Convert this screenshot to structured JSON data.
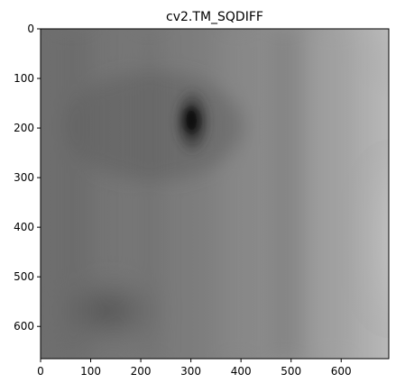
{
  "chart_data": {
    "type": "heatmap",
    "title": "cv2.TM_SQDIFF",
    "colormap": "gray",
    "xlim": [
      0,
      695
    ],
    "ylim": [
      665,
      0
    ],
    "x_ticks": [
      0,
      100,
      200,
      300,
      400,
      500,
      600
    ],
    "x_tick_labels": [
      "0",
      "100",
      "200",
      "300",
      "400",
      "500",
      "600"
    ],
    "y_ticks": [
      0,
      100,
      200,
      300,
      400,
      500,
      600
    ],
    "y_tick_labels": [
      "0",
      "100",
      "200",
      "300",
      "400",
      "500",
      "600"
    ],
    "xlabel": "",
    "ylabel": "",
    "grid": false,
    "minimum_location": {
      "x": 300,
      "y": 185
    },
    "bright_regions": [
      {
        "x": 695,
        "y": 0,
        "description": "top-right corner"
      },
      {
        "x": 695,
        "y": 420,
        "description": "right edge"
      }
    ]
  }
}
